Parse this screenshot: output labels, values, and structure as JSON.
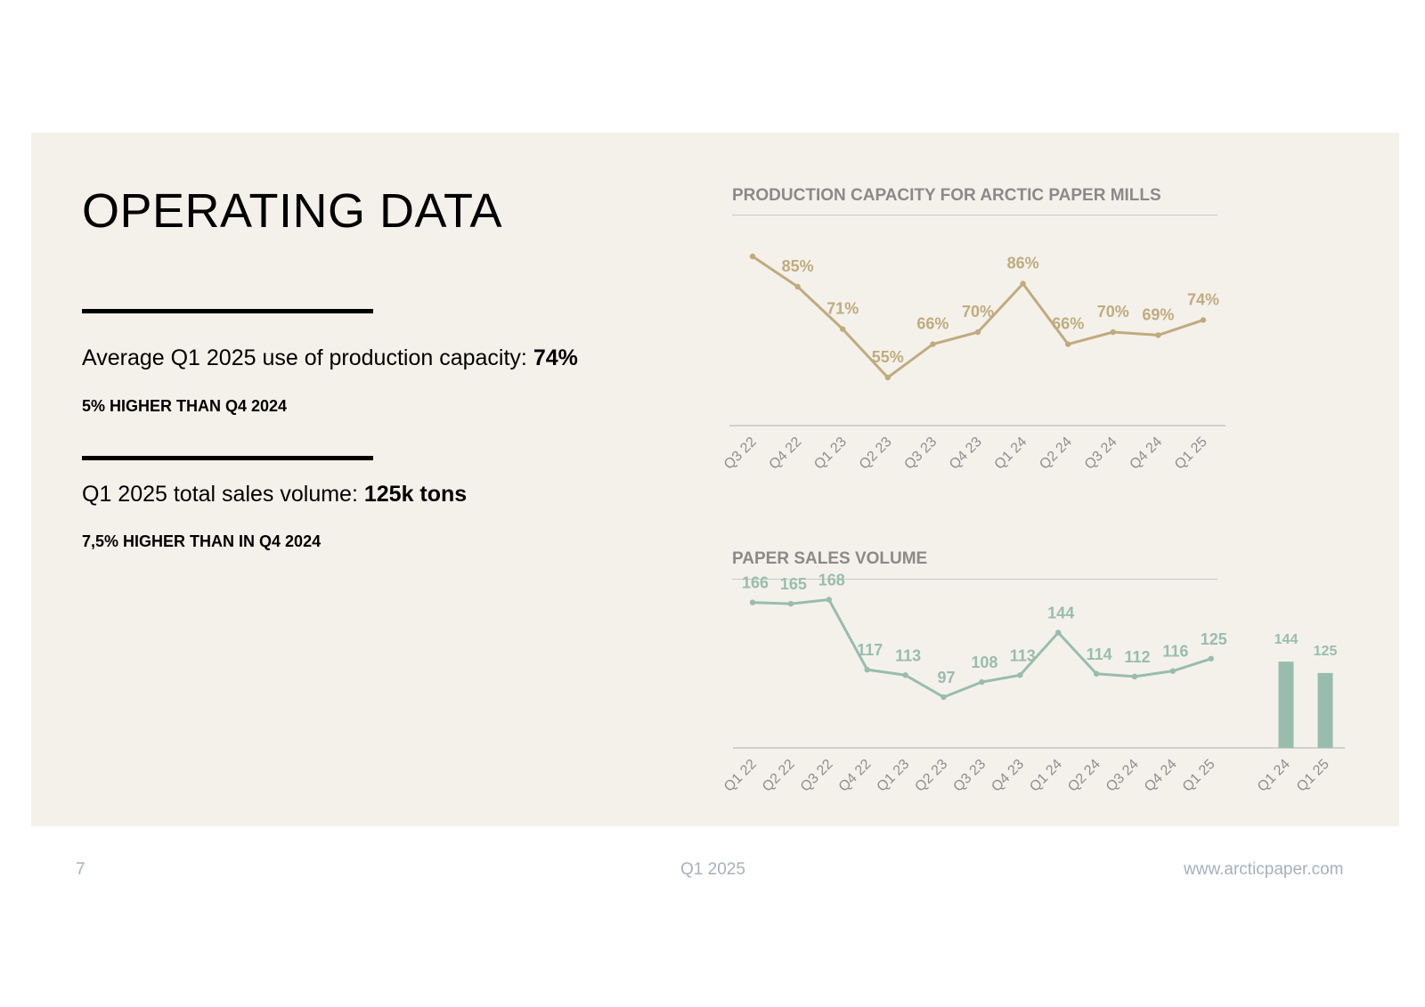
{
  "page_title": "OPERATING DATA",
  "kpi1": {
    "text": "Average Q1 2025 use of production capacity: ",
    "value": "74%",
    "sub": "5% HIGHER THAN Q4 2024"
  },
  "kpi2": {
    "text": "Q1 2025 total sales volume: ",
    "value": "125k tons",
    "sub": "7,5% HIGHER THAN IN Q4 2024"
  },
  "footer": {
    "page_number": "7",
    "period": "Q1 2025",
    "website": "www.arcticpaper.com"
  },
  "colors": {
    "capacity": "#c0ab7e",
    "sales": "#98bdae",
    "panel": "#f4f1eb"
  },
  "chart_data": [
    {
      "type": "line",
      "title": "PRODUCTION CAPACITY FOR ARCTIC PAPER MILLS",
      "categories": [
        "Q3 22",
        "Q4 22",
        "Q1 23",
        "Q2 23",
        "Q3 23",
        "Q4 23",
        "Q1 24",
        "Q2 24",
        "Q3 24",
        "Q4 24",
        "Q1 25"
      ],
      "series": [
        {
          "values": [
            null,
            85,
            71,
            55,
            66,
            70,
            86,
            66,
            70,
            69,
            74
          ],
          "labels": [
            "",
            "85%",
            "71%",
            "55%",
            "66%",
            "70%",
            "86%",
            "66%",
            "70%",
            "69%",
            "74%"
          ],
          "unit": "%"
        }
      ],
      "first_point_unlabeled_estimate": 95,
      "ylim": [
        40,
        100
      ],
      "grid": false,
      "legend": "none"
    },
    {
      "type": "line",
      "title": "PAPER SALES VOLUME",
      "categories": [
        "Q1 22",
        "Q2 22",
        "Q3 22",
        "Q4 22",
        "Q1 23",
        "Q2 23",
        "Q3 23",
        "Q4 23",
        "Q1 24",
        "Q2 24",
        "Q3 24",
        "Q4 24",
        "Q1 25"
      ],
      "series": [
        {
          "values": [
            166,
            165,
            168,
            117,
            113,
            97,
            108,
            113,
            144,
            114,
            112,
            116,
            125
          ],
          "labels": [
            "166",
            "165",
            "168",
            "117",
            "113",
            "97",
            "108",
            "113",
            "144",
            "114",
            "112",
            "116",
            "125"
          ]
        }
      ],
      "comparison_bars": {
        "type": "bar",
        "categories": [
          "Q1 24",
          "Q1 25"
        ],
        "values": [
          144,
          125
        ],
        "labels": [
          "144",
          "125"
        ]
      },
      "ylim": [
        60,
        180
      ],
      "grid": false,
      "legend": "none"
    }
  ]
}
